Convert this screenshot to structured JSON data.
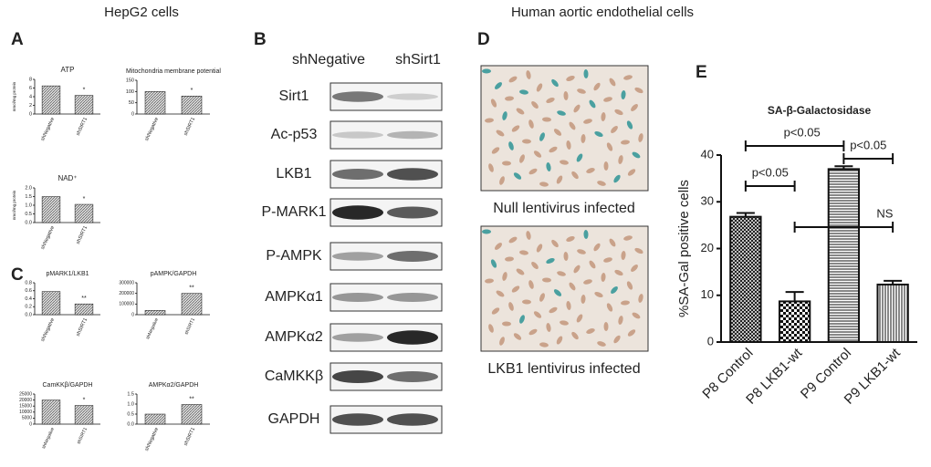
{
  "headers": {
    "left": "HepG2 cells",
    "right": "Human aortic endothelial cells"
  },
  "panel_labels": [
    "A",
    "B",
    "C",
    "D",
    "E"
  ],
  "blot": {
    "columns": [
      "shNegative",
      "shSirt1"
    ],
    "rows": [
      "Sirt1",
      "Ac-p53",
      "LKB1",
      "P-MARK1",
      "P-AMPK",
      "AMPKα1",
      "AMPKα2",
      "CaMKKβ",
      "GAPDH"
    ]
  },
  "images": {
    "captions": [
      "Null lentivirus infected",
      "LKB1  lentivirus infected"
    ]
  },
  "chart_data": [
    {
      "type": "bar",
      "title": "ATP",
      "ylabel": "nmol/mg protein",
      "categories": [
        "shNegative",
        "shSIRT1"
      ],
      "values": [
        6.5,
        4.3
      ],
      "ylim": [
        0,
        8
      ],
      "yticks": [
        0,
        2,
        4,
        6,
        8
      ],
      "annotation": "*"
    },
    {
      "type": "bar",
      "title": "Mitochondria membrane potential",
      "categories": [
        "shNegative",
        "shSIRT1"
      ],
      "values": [
        100,
        80
      ],
      "ylim": [
        0,
        150
      ],
      "yticks": [
        0,
        50,
        100,
        150
      ],
      "annotation": "*"
    },
    {
      "type": "bar",
      "title": "NAD⁺",
      "ylabel": "nmol/mg protein",
      "categories": [
        "shNegative",
        "shSIRT1"
      ],
      "values": [
        1.5,
        1.05
      ],
      "ylim": [
        0,
        2
      ],
      "yticks": [
        {
          "value": 0,
          "label": "0.0"
        },
        0.5,
        {
          "value": 1,
          "label": "1.0"
        },
        1.5,
        {
          "value": 2,
          "label": "2.0"
        }
      ],
      "annotation": "*"
    },
    {
      "type": "bar",
      "title": "pMARK1/LKB1",
      "categories": [
        "shNegative",
        "shSIRT1"
      ],
      "values": [
        0.58,
        0.27
      ],
      "ylim": [
        0,
        0.8
      ],
      "yticks": [
        {
          "value": 0,
          "label": "0.0"
        },
        0.2,
        0.4,
        0.6,
        0.8
      ],
      "annotation": "**"
    },
    {
      "type": "bar",
      "title": "pAMPK/GAPDH",
      "categories": [
        "shNegative",
        "shSIRT1"
      ],
      "values": [
        40000,
        200000
      ],
      "ylim": [
        0,
        300000
      ],
      "yticks": [
        0,
        100000,
        200000,
        300000
      ],
      "annotation": "**"
    },
    {
      "type": "bar",
      "title": "CamKKβ/GAPDH",
      "categories": [
        "shNegative",
        "shSIRT1"
      ],
      "values": [
        20000,
        15500
      ],
      "ylim": [
        0,
        25000
      ],
      "yticks": [
        0,
        5000,
        10000,
        15000,
        20000,
        25000
      ],
      "annotation": "*"
    },
    {
      "type": "bar",
      "title": "AMPKα2/GAPDH",
      "categories": [
        "shNegative",
        "shSIRT1"
      ],
      "values": [
        0.5,
        0.98
      ],
      "ylim": [
        0,
        1.5
      ],
      "yticks": [
        {
          "value": 0,
          "label": "0.0"
        },
        0.5,
        {
          "value": 1,
          "label": "1.0"
        },
        1.5
      ],
      "annotation": "**"
    },
    {
      "type": "bar",
      "title": "SA-β-Galactosidase",
      "ylabel": "%SA-Gal positive cells",
      "categories": [
        "P8 Control",
        "P8 LKB1-wt",
        "P9 Control",
        "P9 LKB1-wt"
      ],
      "values": [
        26.8,
        8.7,
        37,
        12.3
      ],
      "errors": [
        0.8,
        2,
        0.6,
        0.8
      ],
      "ylim": [
        0,
        40
      ],
      "yticks": [
        0,
        10,
        20,
        30,
        40
      ],
      "annotations": [
        "p<0.05",
        "p<0.05",
        "p<0.05",
        "NS"
      ]
    }
  ]
}
